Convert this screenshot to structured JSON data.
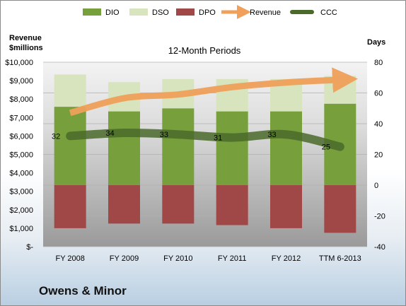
{
  "company": "Owens & Minor",
  "chart_data": {
    "type": "bar",
    "title": "12-Month Periods",
    "categories": [
      "FY 2008",
      "FY 2009",
      "FY 2010",
      "FY 2011",
      "FY 2012",
      "TTM 6-2013"
    ],
    "y_left": {
      "label_line1": "Revenue",
      "label_line2": "$millions",
      "range": [
        0,
        10000
      ],
      "ticks": [
        0,
        1000,
        2000,
        3000,
        4000,
        5000,
        6000,
        7000,
        8000,
        9000,
        10000
      ],
      "tick_labels": [
        "$-",
        "$1,000",
        "$2,000",
        "$3,000",
        "$4,000",
        "$5,000",
        "$6,000",
        "$7,000",
        "$8,000",
        "$9,000",
        "$10,000"
      ]
    },
    "y_right": {
      "label": "Days",
      "range": [
        -40,
        80
      ],
      "ticks": [
        -40,
        -20,
        0,
        20,
        40,
        60,
        80
      ],
      "tick_labels": [
        "-40",
        "-20",
        "0",
        "20",
        "40",
        "60",
        "80"
      ]
    },
    "series": [
      {
        "name": "DIO",
        "type": "stacked-bar",
        "axis": "right",
        "color": "#77a03d",
        "values": [
          51,
          48,
          50,
          48,
          48,
          53
        ]
      },
      {
        "name": "DSO",
        "type": "stacked-bar",
        "axis": "right",
        "color": "#d7e4bd",
        "values": [
          21,
          19,
          19,
          21,
          21,
          18
        ]
      },
      {
        "name": "DPO",
        "type": "stacked-bar",
        "axis": "right",
        "color": "#a04848",
        "values": [
          -28,
          -25,
          -25,
          -26,
          -28,
          -31
        ]
      },
      {
        "name": "Revenue",
        "type": "line",
        "axis": "left",
        "color": "#f0a05a",
        "values": [
          7250,
          8050,
          8250,
          8650,
          8900,
          9050
        ]
      },
      {
        "name": "CCC",
        "type": "line",
        "axis": "right",
        "color": "#4a6a2a",
        "values": [
          32,
          34,
          33,
          31,
          33,
          25
        ],
        "labels": [
          "32",
          "34",
          "33",
          "31",
          "33",
          "25"
        ]
      }
    ],
    "legend_position": "top"
  }
}
